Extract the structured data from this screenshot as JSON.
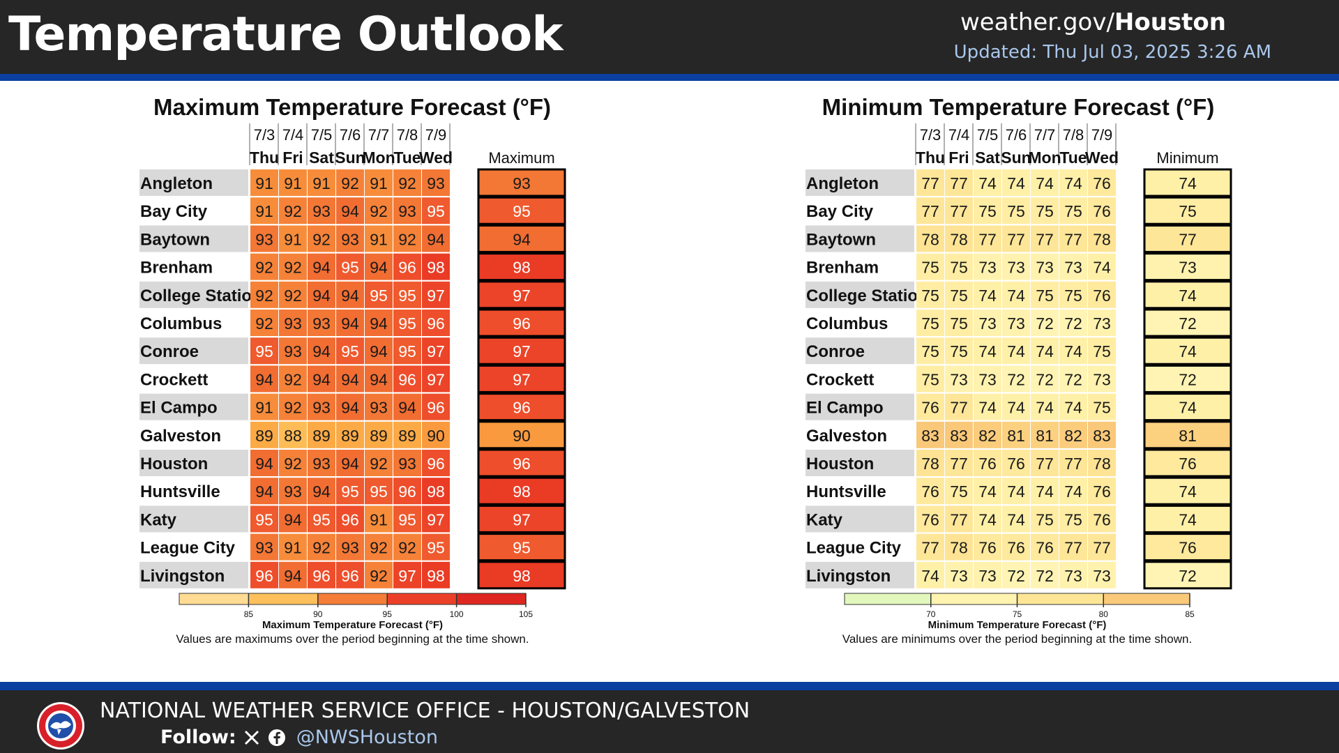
{
  "header": {
    "title": "Temperature Outlook",
    "site_prefix": "weather.gov/",
    "site_office": "Houston",
    "updated": "Updated: Thu Jul 03, 2025 3:26 AM"
  },
  "footer": {
    "office": "NATIONAL WEATHER SERVICE OFFICE - HOUSTON/GALVESTON",
    "follow_label": "Follow:",
    "handle": "@NWSHouston",
    "logo_text": "NATIONAL WEATHER SERVICE"
  },
  "colors": {
    "header_bg": "#262626",
    "accent_blue": "#0b3fa0",
    "updated_text": "#a9c7ec",
    "row_label_bg": "#d9d9d9"
  },
  "chart_data": [
    {
      "type": "table",
      "title": "Maximum Temperature Forecast (°F)",
      "dates": [
        "7/3",
        "7/4",
        "7/5",
        "7/6",
        "7/7",
        "7/8",
        "7/9"
      ],
      "days": [
        "Thu",
        "Fri",
        "Sat",
        "Sun",
        "Mon",
        "Tue",
        "Wed"
      ],
      "summary_label": "Maximum",
      "rows": [
        {
          "location": "Angleton",
          "values": [
            91,
            91,
            91,
            92,
            91,
            92,
            93
          ],
          "summary": 93
        },
        {
          "location": "Bay City",
          "values": [
            91,
            92,
            93,
            94,
            92,
            93,
            95
          ],
          "summary": 95
        },
        {
          "location": "Baytown",
          "values": [
            93,
            91,
            92,
            93,
            91,
            92,
            94
          ],
          "summary": 94
        },
        {
          "location": "Brenham",
          "values": [
            92,
            92,
            94,
            95,
            94,
            96,
            98
          ],
          "summary": 98
        },
        {
          "location": "College Station",
          "values": [
            92,
            92,
            94,
            94,
            95,
            95,
            97
          ],
          "summary": 97
        },
        {
          "location": "Columbus",
          "values": [
            92,
            93,
            93,
            94,
            94,
            95,
            96
          ],
          "summary": 96
        },
        {
          "location": "Conroe",
          "values": [
            95,
            93,
            94,
            95,
            94,
            95,
            97
          ],
          "summary": 97
        },
        {
          "location": "Crockett",
          "values": [
            94,
            92,
            94,
            94,
            94,
            96,
            97
          ],
          "summary": 97
        },
        {
          "location": "El Campo",
          "values": [
            91,
            92,
            93,
            94,
            93,
            94,
            96
          ],
          "summary": 96
        },
        {
          "location": "Galveston",
          "values": [
            89,
            88,
            89,
            89,
            89,
            89,
            90
          ],
          "summary": 90
        },
        {
          "location": "Houston",
          "values": [
            94,
            92,
            93,
            94,
            92,
            93,
            96
          ],
          "summary": 96
        },
        {
          "location": "Huntsville",
          "values": [
            94,
            93,
            94,
            95,
            95,
            96,
            98
          ],
          "summary": 98
        },
        {
          "location": "Katy",
          "values": [
            95,
            94,
            95,
            96,
            91,
            95,
            97
          ],
          "summary": 97
        },
        {
          "location": "League City",
          "values": [
            93,
            91,
            92,
            93,
            92,
            92,
            95
          ],
          "summary": 95
        },
        {
          "location": "Livingston",
          "values": [
            96,
            94,
            96,
            96,
            92,
            97,
            98
          ],
          "summary": 98
        }
      ],
      "colorbar": {
        "min": 80,
        "max": 105,
        "ticks": [
          85,
          90,
          95,
          100,
          105
        ],
        "label": "Maximum Temperature Forecast (°F)",
        "note": "Values are maximums over the period beginning at the time shown."
      }
    },
    {
      "type": "table",
      "title": "Minimum Temperature Forecast (°F)",
      "dates": [
        "7/3",
        "7/4",
        "7/5",
        "7/6",
        "7/7",
        "7/8",
        "7/9"
      ],
      "days": [
        "Thu",
        "Fri",
        "Sat",
        "Sun",
        "Mon",
        "Tue",
        "Wed"
      ],
      "summary_label": "Minimum",
      "rows": [
        {
          "location": "Angleton",
          "values": [
            77,
            77,
            74,
            74,
            74,
            74,
            76
          ],
          "summary": 74
        },
        {
          "location": "Bay City",
          "values": [
            77,
            77,
            75,
            75,
            75,
            75,
            76
          ],
          "summary": 75
        },
        {
          "location": "Baytown",
          "values": [
            78,
            78,
            77,
            77,
            77,
            77,
            78
          ],
          "summary": 77
        },
        {
          "location": "Brenham",
          "values": [
            75,
            75,
            73,
            73,
            73,
            73,
            74
          ],
          "summary": 73
        },
        {
          "location": "College Station",
          "values": [
            75,
            75,
            74,
            74,
            75,
            75,
            76
          ],
          "summary": 74
        },
        {
          "location": "Columbus",
          "values": [
            75,
            75,
            73,
            73,
            72,
            72,
            73
          ],
          "summary": 72
        },
        {
          "location": "Conroe",
          "values": [
            75,
            75,
            74,
            74,
            74,
            74,
            75
          ],
          "summary": 74
        },
        {
          "location": "Crockett",
          "values": [
            75,
            73,
            73,
            72,
            72,
            72,
            73
          ],
          "summary": 72
        },
        {
          "location": "El Campo",
          "values": [
            76,
            77,
            74,
            74,
            74,
            74,
            75
          ],
          "summary": 74
        },
        {
          "location": "Galveston",
          "values": [
            83,
            83,
            82,
            81,
            81,
            82,
            83
          ],
          "summary": 81
        },
        {
          "location": "Houston",
          "values": [
            78,
            77,
            76,
            76,
            77,
            77,
            78
          ],
          "summary": 76
        },
        {
          "location": "Huntsville",
          "values": [
            76,
            75,
            74,
            74,
            74,
            74,
            76
          ],
          "summary": 74
        },
        {
          "location": "Katy",
          "values": [
            76,
            77,
            74,
            74,
            75,
            75,
            76
          ],
          "summary": 74
        },
        {
          "location": "League City",
          "values": [
            77,
            78,
            76,
            76,
            76,
            77,
            77
          ],
          "summary": 76
        },
        {
          "location": "Livingston",
          "values": [
            74,
            73,
            73,
            72,
            72,
            73,
            73
          ],
          "summary": 72
        }
      ],
      "colorbar": {
        "min": 65,
        "max": 85,
        "ticks": [
          70,
          75,
          80,
          85
        ],
        "label": "Minimum Temperature Forecast (°F)",
        "note": "Values are minimums over the period beginning at the time shown."
      }
    }
  ]
}
